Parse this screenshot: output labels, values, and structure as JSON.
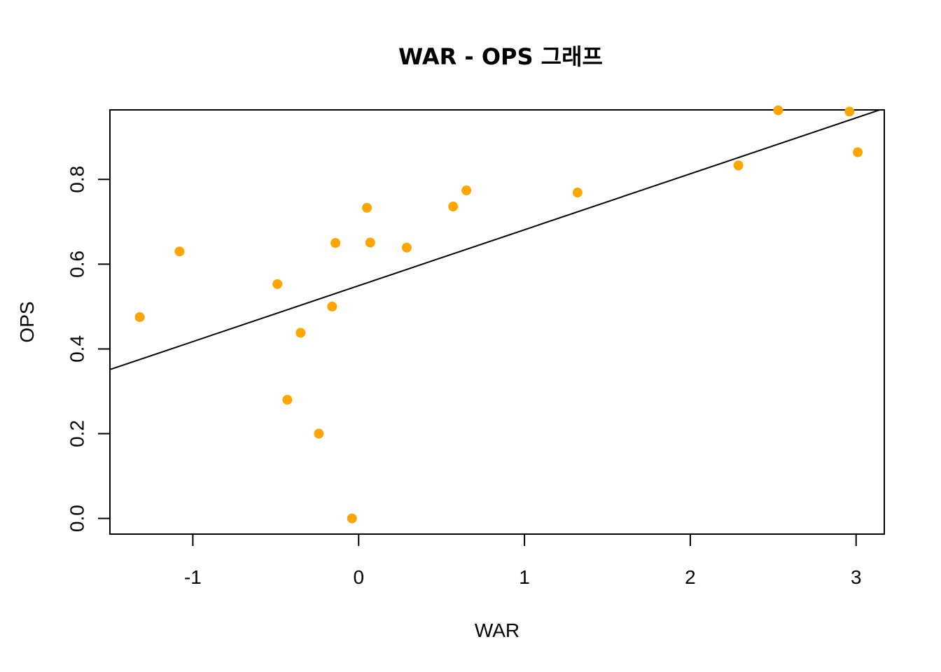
{
  "chart_data": {
    "type": "scatter",
    "title": "WAR - OPS 그래프",
    "xlabel": "WAR",
    "ylabel": "OPS",
    "xlim": [
      -1.5,
      3.17
    ],
    "ylim": [
      -0.037,
      0.964
    ],
    "xticks": [
      -1,
      0,
      1,
      2,
      3
    ],
    "xtick_labels": [
      "-1",
      "0",
      "1",
      "2",
      "3"
    ],
    "yticks": [
      0.0,
      0.2,
      0.4,
      0.6,
      0.8
    ],
    "ytick_labels": [
      "0.0",
      "0.2",
      "0.4",
      "0.6",
      "0.8"
    ],
    "grid": false,
    "point_color": "#FFA500",
    "line_color": "#000000",
    "points": [
      {
        "x": -1.32,
        "y": 0.475
      },
      {
        "x": -1.08,
        "y": 0.63
      },
      {
        "x": -0.49,
        "y": 0.553
      },
      {
        "x": -0.43,
        "y": 0.28
      },
      {
        "x": -0.35,
        "y": 0.438
      },
      {
        "x": -0.24,
        "y": 0.2
      },
      {
        "x": -0.16,
        "y": 0.5
      },
      {
        "x": -0.14,
        "y": 0.65
      },
      {
        "x": -0.04,
        "y": 0.0
      },
      {
        "x": 0.05,
        "y": 0.733
      },
      {
        "x": 0.07,
        "y": 0.651
      },
      {
        "x": 0.29,
        "y": 0.639
      },
      {
        "x": 0.57,
        "y": 0.736
      },
      {
        "x": 0.65,
        "y": 0.774
      },
      {
        "x": 1.32,
        "y": 0.769
      },
      {
        "x": 2.29,
        "y": 0.833
      },
      {
        "x": 2.53,
        "y": 0.963
      },
      {
        "x": 2.96,
        "y": 0.96
      },
      {
        "x": 3.01,
        "y": 0.864
      }
    ],
    "regression_line": {
      "intercept": 0.5492,
      "slope": 0.132
    }
  }
}
